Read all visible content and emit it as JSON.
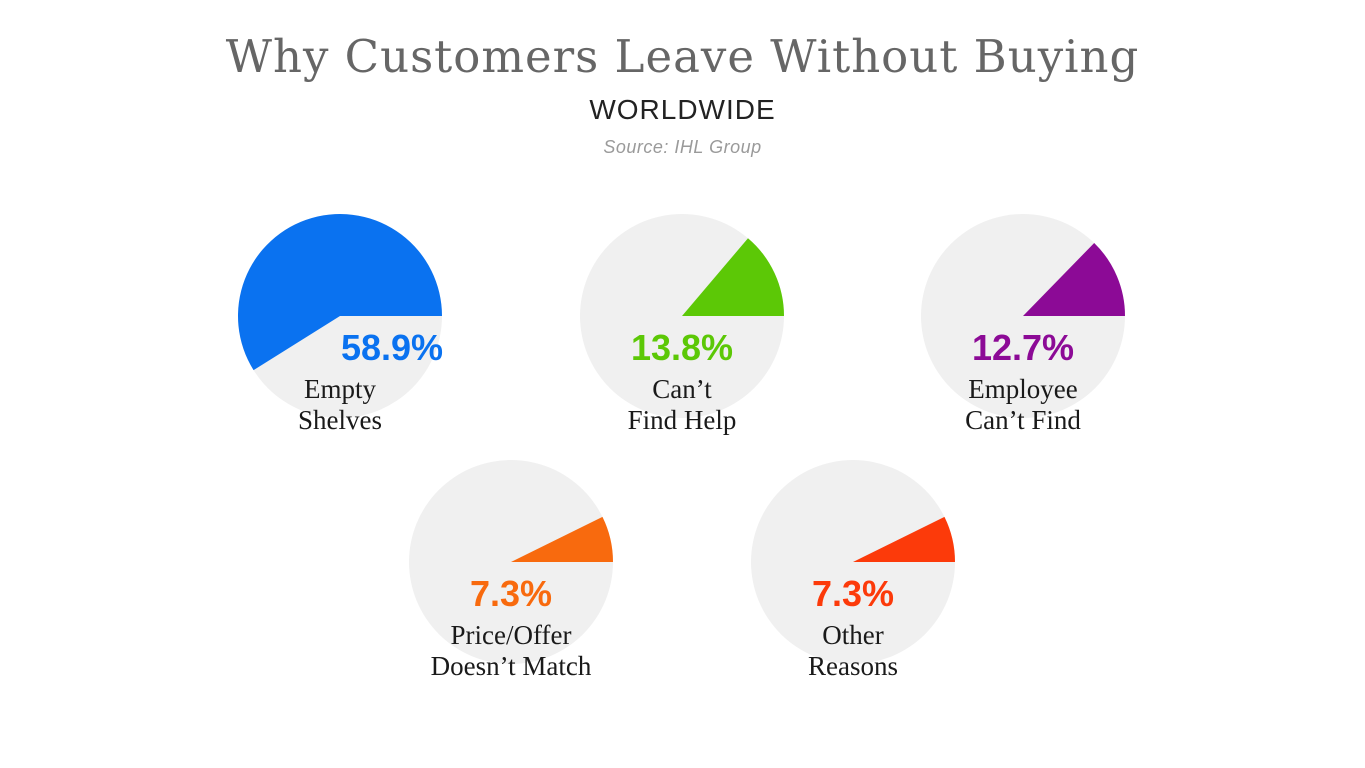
{
  "header": {
    "title": "Why Customers Leave Without Buying",
    "subtitle": "WORLDWIDE",
    "source": "Source: IHL Group"
  },
  "chart_data": {
    "type": "pie",
    "title": "Why Customers Leave Without Buying",
    "subtitle": "WORLDWIDE",
    "source": "Source: IHL Group",
    "background_color": "#f0f0f0",
    "slices": [
      {
        "label_lines": [
          "Empty",
          "Shelves"
        ],
        "value": 58.9,
        "value_label": "58.9%",
        "color": "#0a72f0"
      },
      {
        "label_lines": [
          "Can’t",
          "Find Help"
        ],
        "value": 13.8,
        "value_label": "13.8%",
        "color": "#5cc806"
      },
      {
        "label_lines": [
          "Employee",
          "Can’t Find"
        ],
        "value": 12.7,
        "value_label": "12.7%",
        "color": "#8c0a96"
      },
      {
        "label_lines": [
          "Price/Offer",
          "Doesn’t Match"
        ],
        "value": 7.3,
        "value_label": "7.3%",
        "color": "#f86a0e"
      },
      {
        "label_lines": [
          "Other",
          "Reasons"
        ],
        "value": 7.3,
        "value_label": "7.3%",
        "color": "#fc3a0a"
      }
    ]
  }
}
